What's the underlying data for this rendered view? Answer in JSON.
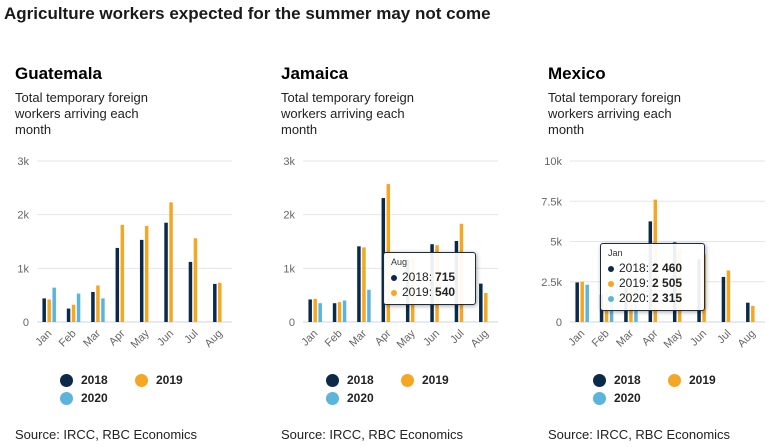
{
  "title": "Agriculture workers expected for the summer may not come",
  "source_text": "Source: IRCC, RBC Economics",
  "colors": {
    "2018": "#0b2a4a",
    "2019": "#f5a623",
    "2020": "#5bb4dc",
    "grid": "#e6e6e6",
    "axis": "#ccd6eb"
  },
  "legend": [
    "2018",
    "2019",
    "2020"
  ],
  "chart_data": [
    {
      "type": "bar",
      "title": "Guatemala",
      "subtitle": "Total temporary foreign workers arriving each month",
      "categories": [
        "Jan",
        "Feb",
        "Mar",
        "Apr",
        "May",
        "Jun",
        "Jul",
        "Aug"
      ],
      "ylim": [
        0,
        3000
      ],
      "yticks": [
        0,
        1000,
        2000,
        3000
      ],
      "yticklabels": [
        "0",
        "1k",
        "2k",
        "3k"
      ],
      "series": [
        {
          "name": "2018",
          "values": [
            440,
            250,
            560,
            1380,
            1530,
            1850,
            1120,
            710
          ]
        },
        {
          "name": "2019",
          "values": [
            420,
            320,
            680,
            1810,
            1790,
            2230,
            1560,
            730
          ]
        },
        {
          "name": "2020",
          "values": [
            640,
            530,
            440,
            null,
            null,
            null,
            null,
            null
          ]
        }
      ]
    },
    {
      "type": "bar",
      "title": "Jamaica",
      "subtitle": "Total temporary foreign workers arriving each month",
      "categories": [
        "Jan",
        "Feb",
        "Mar",
        "Apr",
        "May",
        "Jun",
        "Jul",
        "Aug"
      ],
      "ylim": [
        0,
        3000
      ],
      "yticks": [
        0,
        1000,
        2000,
        3000
      ],
      "yticklabels": [
        "0",
        "1k",
        "2k",
        "3k"
      ],
      "series": [
        {
          "name": "2018",
          "values": [
            420,
            350,
            1410,
            2310,
            1160,
            1450,
            1510,
            715
          ]
        },
        {
          "name": "2019",
          "values": [
            430,
            370,
            1390,
            2570,
            1170,
            1430,
            1830,
            540
          ]
        },
        {
          "name": "2020",
          "values": [
            350,
            400,
            600,
            null,
            null,
            null,
            null,
            null
          ]
        }
      ],
      "tooltip": {
        "category": "Aug",
        "rows": [
          {
            "series": "2018",
            "value": "715"
          },
          {
            "series": "2019",
            "value": "540"
          }
        ]
      }
    },
    {
      "type": "bar",
      "title": "Mexico",
      "subtitle": "Total temporary foreign workers arriving each month",
      "categories": [
        "Jan",
        "Feb",
        "Mar",
        "Apr",
        "May",
        "Jun",
        "Jul",
        "Aug"
      ],
      "ylim": [
        0,
        10000
      ],
      "yticks": [
        0,
        2500,
        5000,
        7500,
        10000
      ],
      "yticklabels": [
        "0",
        "2.5k",
        "5k",
        "7.5k",
        "10k"
      ],
      "series": [
        {
          "name": "2018",
          "values": [
            2460,
            1700,
            2100,
            6250,
            4950,
            3900,
            2800,
            1200
          ]
        },
        {
          "name": "2019",
          "values": [
            2505,
            1800,
            2400,
            7600,
            4500,
            4200,
            3200,
            1000
          ]
        },
        {
          "name": "2020",
          "values": [
            2315,
            2000,
            2500,
            null,
            null,
            null,
            null,
            null
          ]
        }
      ],
      "tooltip": {
        "category": "Jan",
        "rows": [
          {
            "series": "2018",
            "value": "2 460"
          },
          {
            "series": "2019",
            "value": "2 505"
          },
          {
            "series": "2020",
            "value": "2 315"
          }
        ]
      }
    }
  ]
}
